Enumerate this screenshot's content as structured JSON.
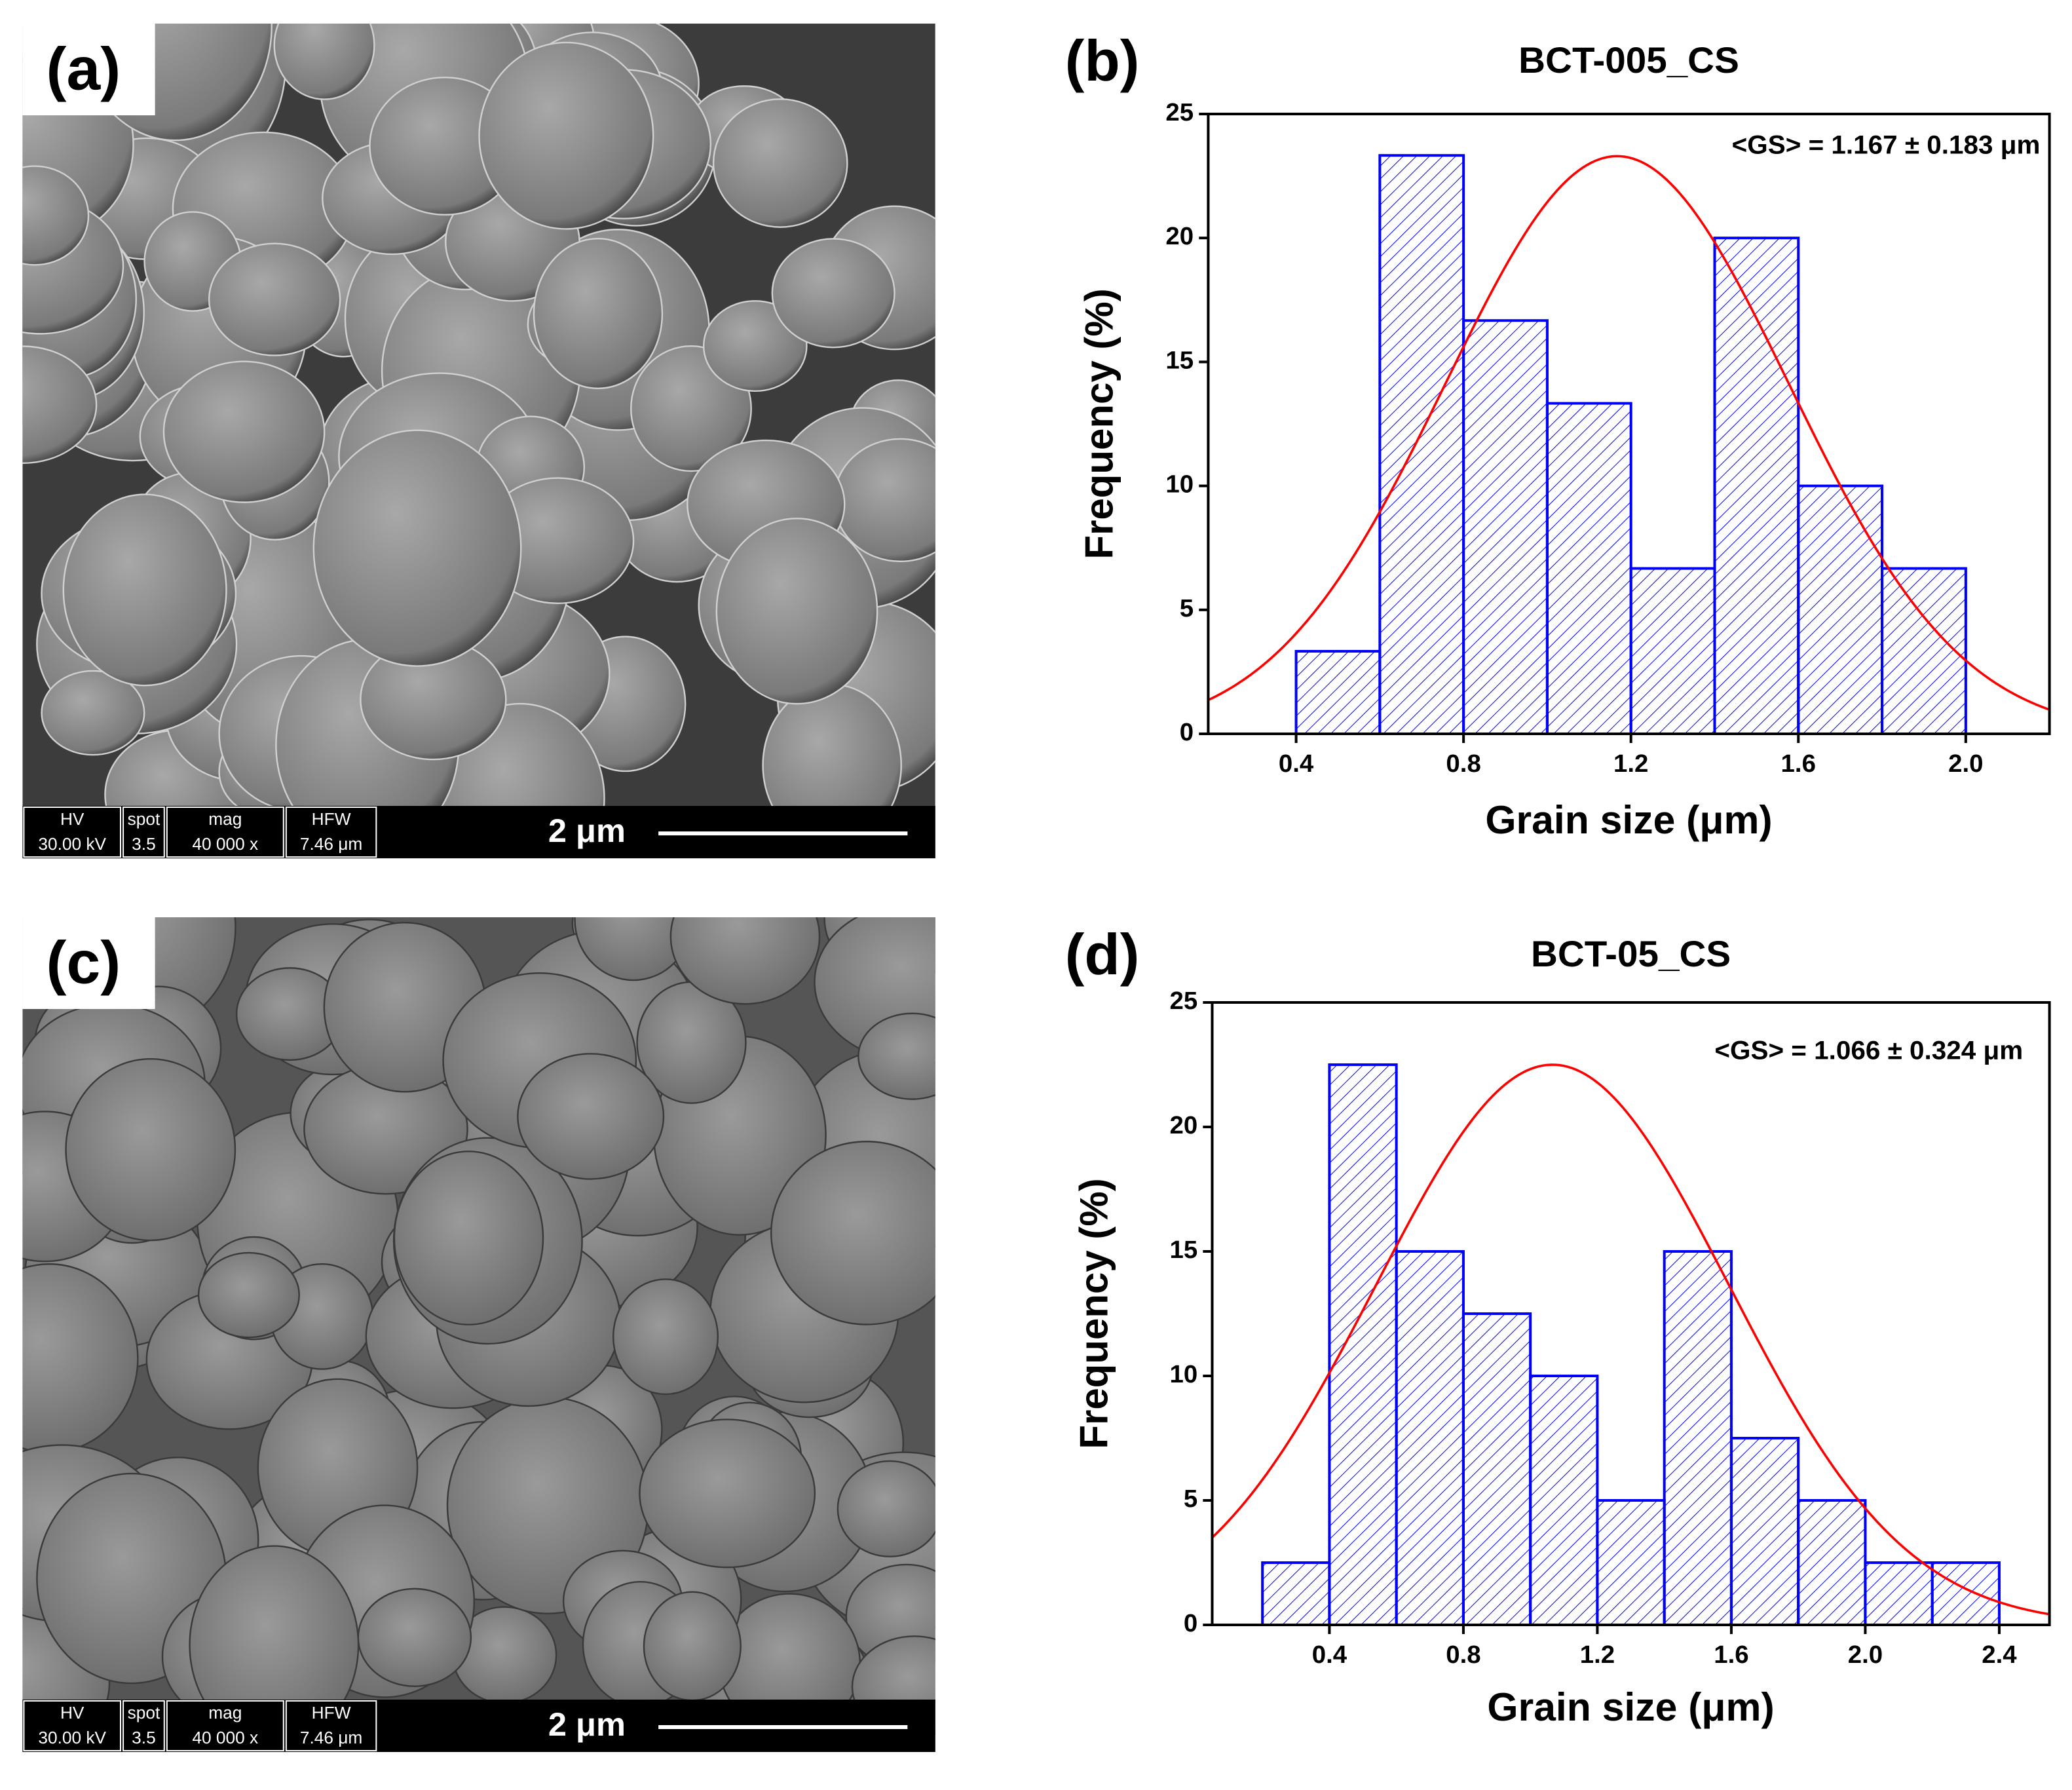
{
  "images": [
    {
      "label": "(a)",
      "databar": [
        [
          "HV",
          "30.00 kV"
        ],
        [
          "spot",
          "3.5"
        ],
        [
          "mag",
          "40 000 x"
        ],
        [
          "HFW",
          "7.46 μm"
        ]
      ],
      "scale_bar": "2 μm"
    },
    {
      "label": "(c)",
      "databar": [
        [
          "HV",
          "30.00 kV"
        ],
        [
          "spot",
          "3.5"
        ],
        [
          "mag",
          "40 000 x"
        ],
        [
          "HFW",
          "7.46 μm"
        ]
      ],
      "scale_bar": "2 μm"
    }
  ],
  "chart_data": [
    {
      "type": "histogram",
      "panel_label": "(b)",
      "title": "BCT-005_CS",
      "annotation": "<GS> = 1.167 ± 0.183 μm",
      "x_label": "Grain size (μm)",
      "y_label": "Frequency (%)",
      "bins": [
        0.4,
        0.6,
        0.8,
        1.0,
        1.2,
        1.4,
        1.6,
        1.8,
        2.0
      ],
      "values": [
        3.33,
        23.33,
        16.67,
        13.33,
        6.67,
        20,
        10,
        6.67
      ],
      "color": "#0000ff",
      "fit": {
        "color": "#ff0000",
        "center": 1.167,
        "sigma": 0.41,
        "peak": 23.3
      },
      "xlim": [
        0.19,
        2.2
      ],
      "xticks": [
        0.4,
        0.8,
        1.2,
        1.6,
        {
          "value": 2.0,
          "label": "2.0"
        }
      ],
      "ylim": [
        0,
        25
      ],
      "yticks": [
        0,
        5,
        10,
        15,
        20,
        25
      ]
    },
    {
      "type": "histogram",
      "panel_label": "(d)",
      "title": "BCT-05_CS",
      "annotation": "<GS> = 1.066 ± 0.324 μm",
      "x_label": "Grain size (μm)",
      "y_label": "Frequency (%)",
      "bins": [
        0.2,
        0.4,
        0.6,
        0.8,
        1.0,
        1.2,
        1.4,
        1.6,
        1.8,
        2.0,
        2.2,
        2.4
      ],
      "values": [
        2.5,
        22.5,
        15,
        12.5,
        10,
        5,
        15,
        7.5,
        5,
        2.5,
        2.5
      ],
      "color": "#0000ff",
      "fit": {
        "color": "#ff0000",
        "center": 1.066,
        "sigma": 0.527,
        "peak": 22.5
      },
      "xlim": [
        0.05,
        2.55
      ],
      "xticks": [
        0.4,
        0.8,
        1.2,
        1.6,
        {
          "value": 2.0,
          "label": "2.0"
        },
        2.4
      ],
      "ylim": [
        0,
        25
      ],
      "yticks": [
        0,
        5,
        10,
        15,
        20,
        25
      ]
    }
  ]
}
